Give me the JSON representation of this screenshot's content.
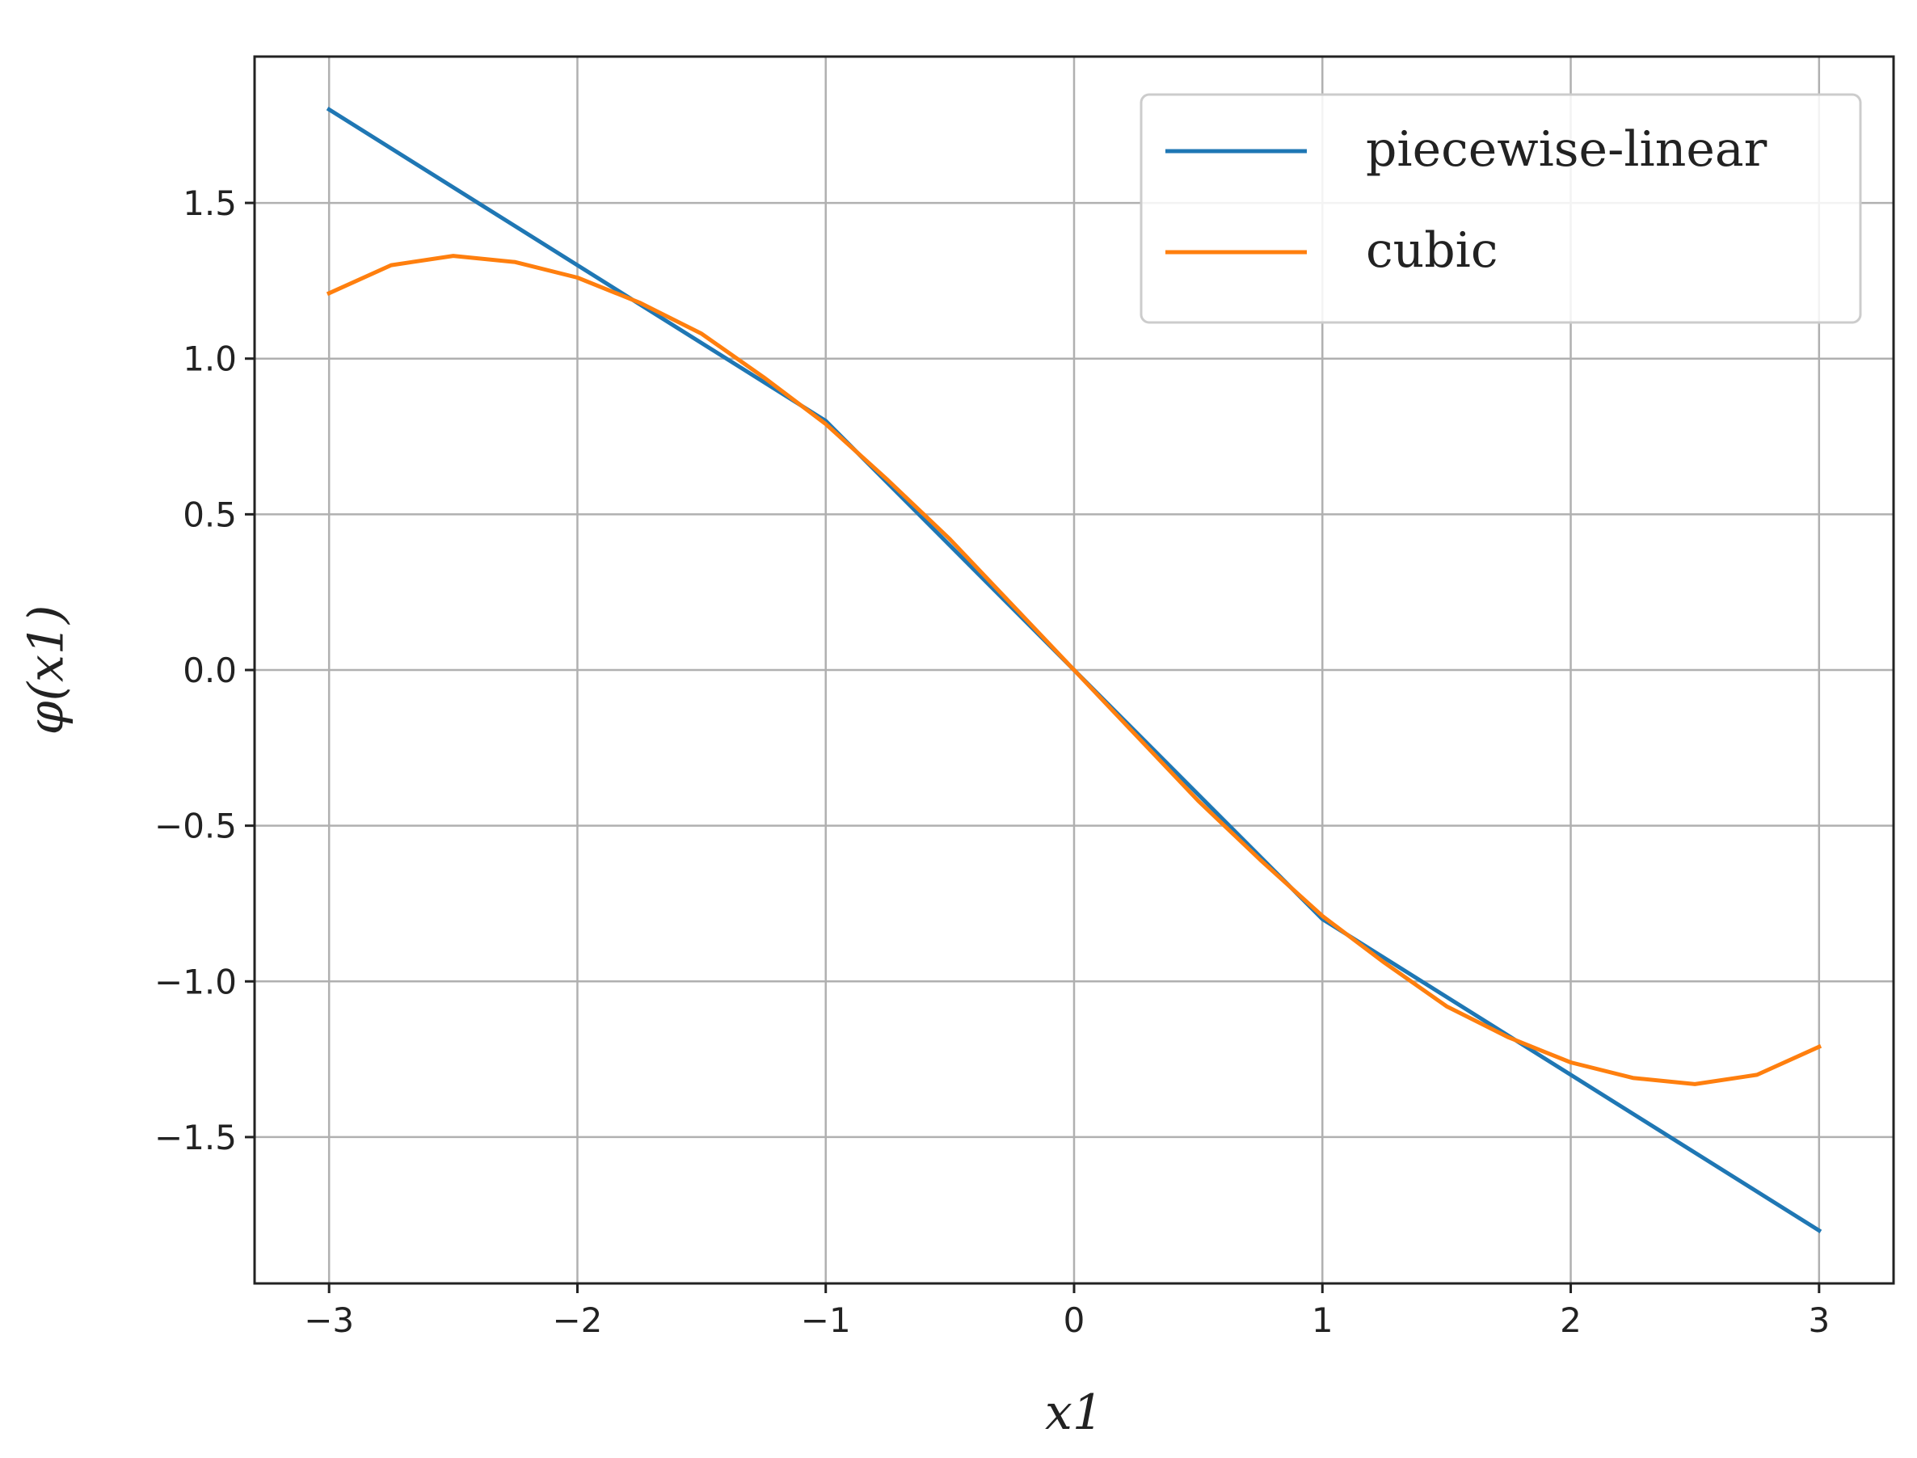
{
  "chart_data": {
    "type": "line",
    "xlabel": "x1",
    "ylabel": "φ(x1)",
    "xlim": [
      -3.3,
      3.3
    ],
    "ylim": [
      -1.97,
      1.97
    ],
    "xticks": [
      -3,
      -2,
      -1,
      0,
      1,
      2,
      3
    ],
    "xtick_labels": [
      "−3",
      "−2",
      "−1",
      "0",
      "1",
      "2",
      "3"
    ],
    "yticks": [
      -1.5,
      -1.0,
      -0.5,
      0.0,
      0.5,
      1.0,
      1.5
    ],
    "ytick_labels": [
      "−1.5",
      "−1.0",
      "−0.5",
      "0.0",
      "0.5",
      "1.0",
      "1.5"
    ],
    "grid": true,
    "legend_position": "top-right",
    "series": [
      {
        "name": "piecewise-linear",
        "color": "#1f77b4",
        "x": [
          -3,
          -1,
          1,
          3
        ],
        "y": [
          1.8,
          0.8,
          -0.8,
          -1.8
        ]
      },
      {
        "name": "cubic",
        "color": "#ff7f0e",
        "x": [
          -3.0,
          -2.75,
          -2.5,
          -2.25,
          -2.0,
          -1.75,
          -1.5,
          -1.25,
          -1.0,
          -0.75,
          -0.5,
          -0.25,
          0.0,
          0.25,
          0.5,
          0.75,
          1.0,
          1.25,
          1.5,
          1.75,
          2.0,
          2.25,
          2.5,
          2.75,
          3.0
        ],
        "y": [
          1.21,
          1.3,
          1.33,
          1.31,
          1.26,
          1.18,
          1.08,
          0.94,
          0.79,
          0.61,
          0.42,
          0.21,
          0.0,
          -0.21,
          -0.42,
          -0.61,
          -0.79,
          -0.94,
          -1.08,
          -1.18,
          -1.26,
          -1.31,
          -1.33,
          -1.3,
          -1.21
        ]
      }
    ]
  }
}
